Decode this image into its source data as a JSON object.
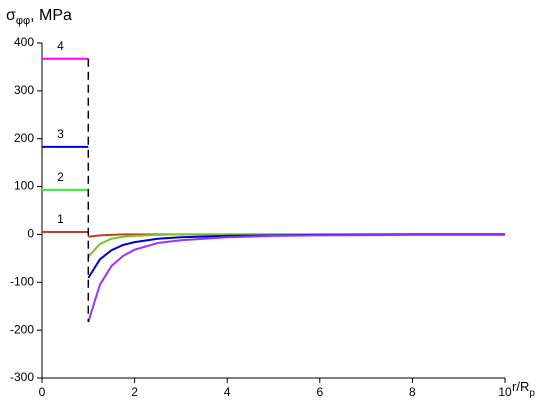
{
  "chart_data": {
    "type": "line",
    "ylabel": "σ",
    "ylabel_sub": "φφ",
    "ylabel_unit": ", MPa",
    "xlabel": "r/R",
    "xlabel_sub": "p",
    "xlim": [
      0,
      10
    ],
    "xticks": [
      0,
      2,
      4,
      6,
      8,
      10
    ],
    "ylim": [
      -300,
      400
    ],
    "yticks": [
      -300,
      -200,
      -100,
      0,
      100,
      200,
      300,
      400
    ],
    "series": [
      {
        "name": "1",
        "color": "#c0392b",
        "x": [
          0,
          1
        ],
        "values": [
          5,
          5
        ]
      },
      {
        "name": "2",
        "color": "#33ee33",
        "x": [
          0,
          1
        ],
        "values": [
          93,
          93
        ]
      },
      {
        "name": "3",
        "color": "#0000cc",
        "x": [
          0,
          1
        ],
        "values": [
          183,
          183
        ]
      },
      {
        "name": "4",
        "color": "#ff00ff",
        "x": [
          0,
          1
        ],
        "values": [
          367,
          367
        ]
      },
      {
        "color": "#c04020",
        "x": [
          1,
          1.25,
          1.5,
          1.75,
          2,
          2.5,
          3,
          4,
          5,
          6,
          8,
          10
        ],
        "values": [
          -5,
          -2,
          -1,
          0,
          0,
          0,
          0,
          0,
          0,
          0,
          0,
          0
        ]
      },
      {
        "color": "#7ac030",
        "x": [
          1,
          1.25,
          1.5,
          1.75,
          2,
          2.5,
          3,
          4,
          5,
          6,
          8,
          10
        ],
        "values": [
          -47,
          -20,
          -9,
          -5,
          -3,
          -1,
          0,
          0,
          0,
          0,
          0,
          0
        ]
      },
      {
        "color": "#0000cc",
        "x": [
          1,
          1.25,
          1.5,
          1.75,
          2,
          2.5,
          3,
          4,
          5,
          6,
          8,
          10
        ],
        "values": [
          -91,
          -52,
          -33,
          -22,
          -16,
          -9,
          -6,
          -3,
          -2,
          -1,
          0,
          0
        ]
      },
      {
        "color": "#9933ff",
        "x": [
          1,
          1.25,
          1.5,
          1.75,
          2,
          2.5,
          3,
          4,
          5,
          6,
          8,
          10
        ],
        "values": [
          -183,
          -105,
          -66,
          -45,
          -32,
          -18,
          -12,
          -6,
          -3,
          -2,
          -1,
          -1
        ]
      }
    ]
  }
}
